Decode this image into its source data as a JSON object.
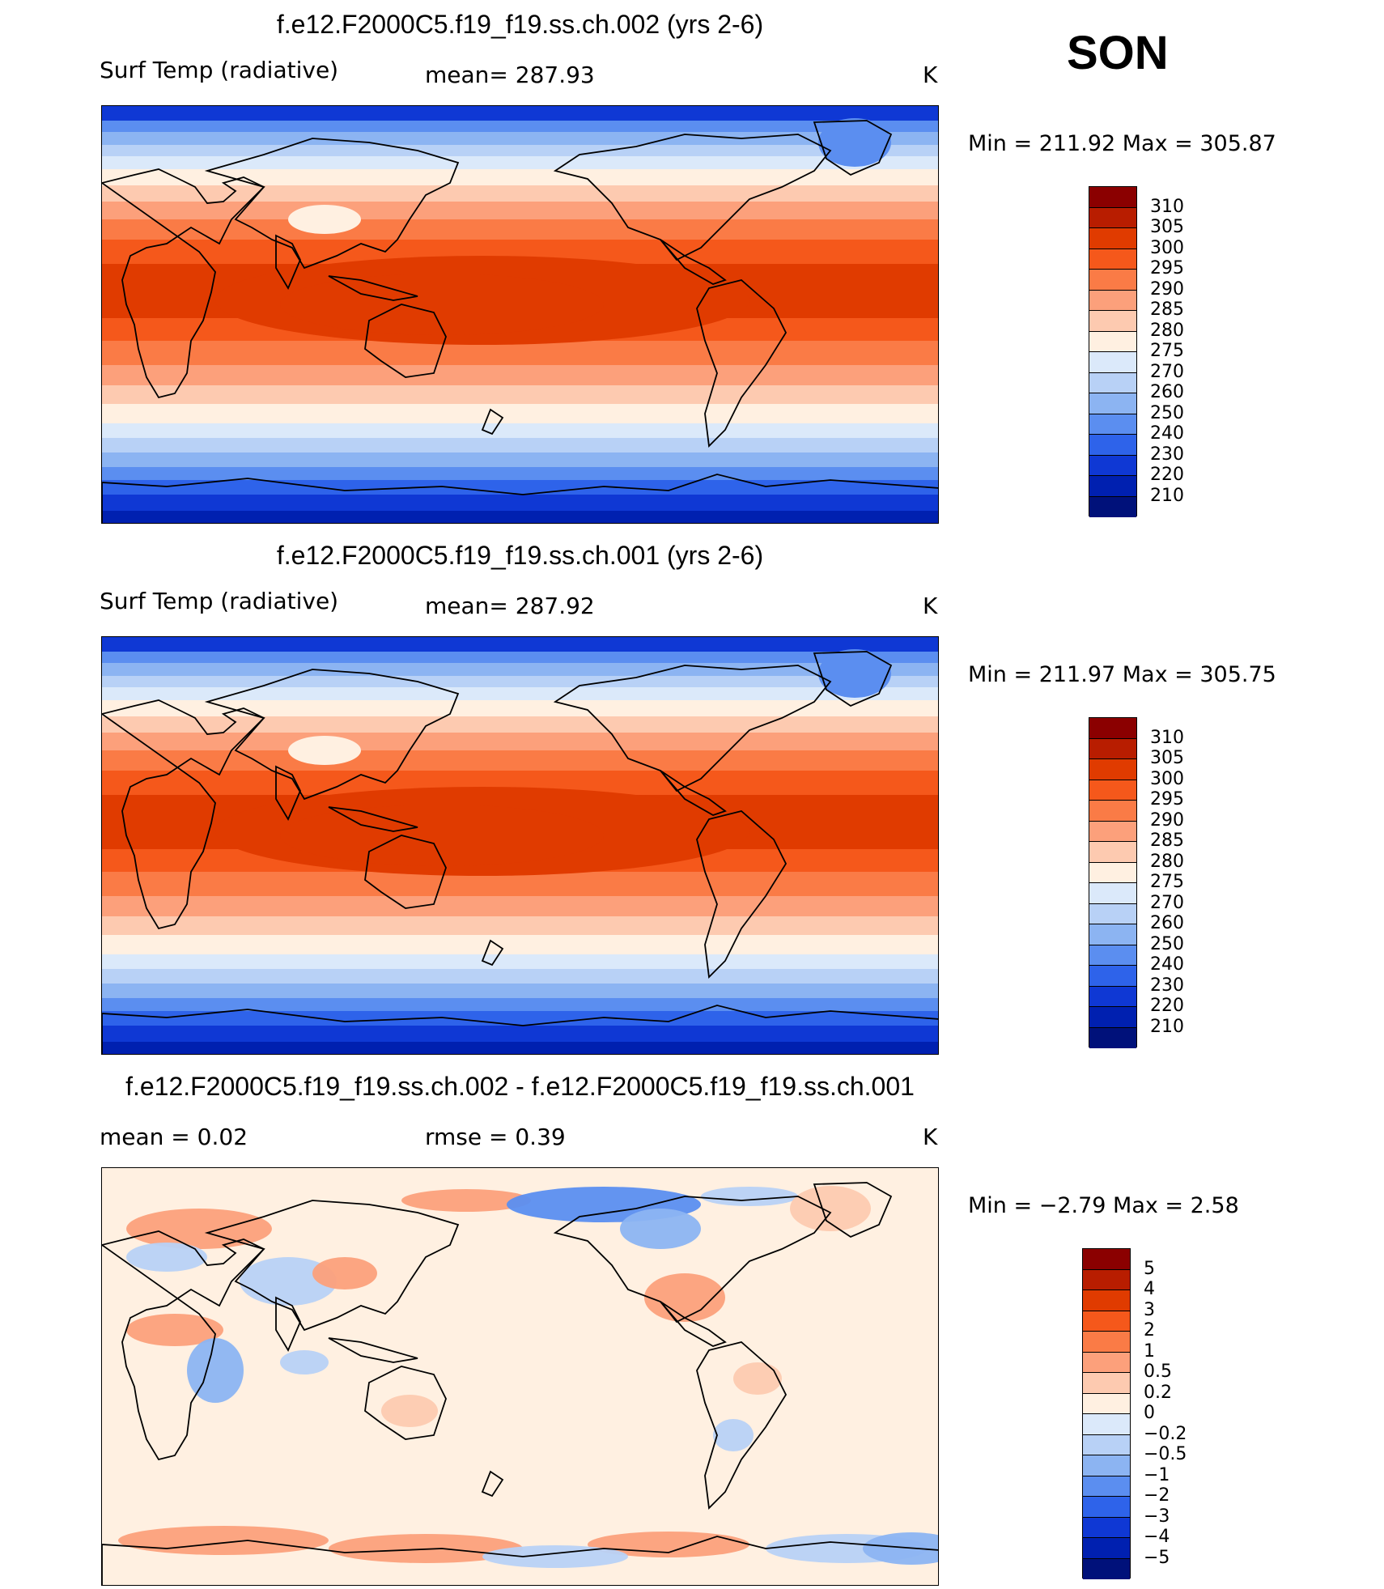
{
  "season": "SON",
  "panels": [
    {
      "title": "f.e12.F2000C5.f19_f19.ss.ch.002 (yrs 2-6)",
      "left_label": "Surf Temp (radiative)",
      "center_label": "mean=  287.93",
      "units": "K",
      "minmax": "Min  =  211.92  Max  =  305.87",
      "colorbar": {
        "levels": [
          "310",
          "305",
          "300",
          "295",
          "290",
          "285",
          "280",
          "275",
          "270",
          "260",
          "250",
          "240",
          "230",
          "220",
          "210"
        ],
        "colors": [
          "#8b0000",
          "#b81d00",
          "#e03b00",
          "#f5581b",
          "#fa7b46",
          "#fca07b",
          "#fdcab0",
          "#fff0e1",
          "#dbe9fa",
          "#b8d1f6",
          "#8cb4f2",
          "#5b8ef0",
          "#2e63ea",
          "#0f38d4",
          "#0020b0",
          "#00117a"
        ]
      },
      "kind": "field"
    },
    {
      "title": "f.e12.F2000C5.f19_f19.ss.ch.001 (yrs 2-6)",
      "left_label": "Surf Temp (radiative)",
      "center_label": "mean=  287.92",
      "units": "K",
      "minmax": "Min  =  211.97  Max  =  305.75",
      "colorbar": {
        "levels": [
          "310",
          "305",
          "300",
          "295",
          "290",
          "285",
          "280",
          "275",
          "270",
          "260",
          "250",
          "240",
          "230",
          "220",
          "210"
        ],
        "colors": [
          "#8b0000",
          "#b81d00",
          "#e03b00",
          "#f5581b",
          "#fa7b46",
          "#fca07b",
          "#fdcab0",
          "#fff0e1",
          "#dbe9fa",
          "#b8d1f6",
          "#8cb4f2",
          "#5b8ef0",
          "#2e63ea",
          "#0f38d4",
          "#0020b0",
          "#00117a"
        ]
      },
      "kind": "field"
    },
    {
      "title": "f.e12.F2000C5.f19_f19.ss.ch.002 - f.e12.F2000C5.f19_f19.ss.ch.001",
      "left_label": "mean  =     0.02",
      "center_label": "rmse  =      0.39",
      "units": "K",
      "minmax": "Min  =    −2.79  Max  =      2.58",
      "colorbar": {
        "levels": [
          "5",
          "4",
          "3",
          "2",
          "1",
          "0.5",
          "0.2",
          "0",
          "−0.2",
          "−0.5",
          "−1",
          "−2",
          "−3",
          "−4",
          "−5"
        ],
        "colors": [
          "#8b0000",
          "#b81d00",
          "#e03b00",
          "#f5581b",
          "#fa7b46",
          "#fca07b",
          "#fdcab0",
          "#fff0e1",
          "#dbe9fa",
          "#b8d1f6",
          "#8cb4f2",
          "#5b8ef0",
          "#2e63ea",
          "#0f38d4",
          "#0020b0",
          "#00117a"
        ]
      },
      "kind": "diff"
    }
  ]
}
